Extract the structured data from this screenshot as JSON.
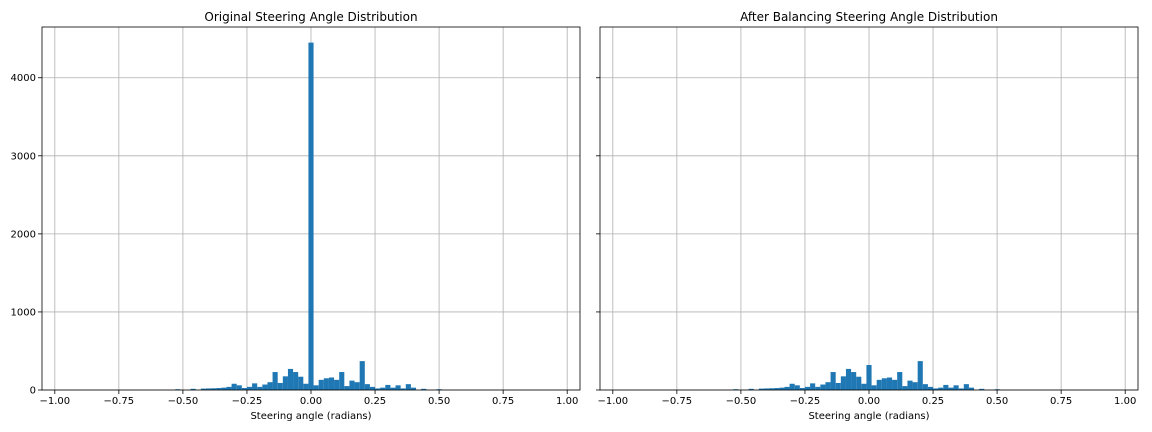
{
  "chart_data": [
    {
      "type": "bar",
      "title": "Original Steering Angle Distribution",
      "xlabel": "Steering angle (radians)",
      "ylabel": "",
      "xlim": [
        -1.05,
        1.05
      ],
      "ylim": [
        0,
        4650
      ],
      "xticks": [
        -1.0,
        -0.75,
        -0.5,
        -0.25,
        0.0,
        0.25,
        0.5,
        0.75,
        1.0
      ],
      "xtick_labels": [
        "−1.00",
        "−0.75",
        "−0.50",
        "−0.25",
        "0.00",
        "0.25",
        "0.50",
        "0.75",
        "1.00"
      ],
      "yticks": [
        0,
        1000,
        2000,
        3000,
        4000
      ],
      "ytick_labels": [
        "0",
        "1000",
        "2000",
        "3000",
        "4000"
      ],
      "grid": true,
      "bin_width": 0.02,
      "color": "#1f77b4",
      "bins": [
        [
          -0.52,
          10
        ],
        [
          -0.46,
          15
        ],
        [
          -0.42,
          18
        ],
        [
          -0.4,
          20
        ],
        [
          -0.38,
          22
        ],
        [
          -0.36,
          25
        ],
        [
          -0.34,
          30
        ],
        [
          -0.32,
          40
        ],
        [
          -0.3,
          80
        ],
        [
          -0.28,
          60
        ],
        [
          -0.26,
          25
        ],
        [
          -0.24,
          40
        ],
        [
          -0.22,
          85
        ],
        [
          -0.2,
          40
        ],
        [
          -0.18,
          70
        ],
        [
          -0.16,
          100
        ],
        [
          -0.14,
          230
        ],
        [
          -0.12,
          90
        ],
        [
          -0.1,
          175
        ],
        [
          -0.08,
          270
        ],
        [
          -0.06,
          230
        ],
        [
          -0.04,
          170
        ],
        [
          -0.02,
          80
        ],
        [
          0.0,
          4450
        ],
        [
          0.02,
          60
        ],
        [
          0.04,
          130
        ],
        [
          0.06,
          150
        ],
        [
          0.08,
          160
        ],
        [
          0.1,
          130
        ],
        [
          0.12,
          230
        ],
        [
          0.14,
          50
        ],
        [
          0.16,
          120
        ],
        [
          0.18,
          100
        ],
        [
          0.2,
          370
        ],
        [
          0.22,
          75
        ],
        [
          0.24,
          40
        ],
        [
          0.26,
          20
        ],
        [
          0.28,
          30
        ],
        [
          0.3,
          65
        ],
        [
          0.32,
          30
        ],
        [
          0.34,
          60
        ],
        [
          0.36,
          20
        ],
        [
          0.38,
          75
        ],
        [
          0.4,
          30
        ],
        [
          0.44,
          15
        ],
        [
          0.5,
          10
        ]
      ]
    },
    {
      "type": "bar",
      "title": "After Balancing Steering Angle Distribution",
      "xlabel": "Steering angle (radians)",
      "ylabel": "",
      "xlim": [
        -1.05,
        1.05
      ],
      "ylim": [
        0,
        4650
      ],
      "xticks": [
        -1.0,
        -0.75,
        -0.5,
        -0.25,
        0.0,
        0.25,
        0.5,
        0.75,
        1.0
      ],
      "xtick_labels": [
        "−1.00",
        "−0.75",
        "−0.50",
        "−0.25",
        "0.00",
        "0.25",
        "0.50",
        "0.75",
        "1.00"
      ],
      "yticks": [
        0,
        1000,
        2000,
        3000,
        4000
      ],
      "ytick_labels": [],
      "grid": true,
      "shared_y": true,
      "bin_width": 0.02,
      "color": "#1f77b4",
      "bins": [
        [
          -0.52,
          10
        ],
        [
          -0.46,
          15
        ],
        [
          -0.42,
          18
        ],
        [
          -0.4,
          20
        ],
        [
          -0.38,
          22
        ],
        [
          -0.36,
          25
        ],
        [
          -0.34,
          30
        ],
        [
          -0.32,
          40
        ],
        [
          -0.3,
          80
        ],
        [
          -0.28,
          60
        ],
        [
          -0.26,
          25
        ],
        [
          -0.24,
          40
        ],
        [
          -0.22,
          85
        ],
        [
          -0.2,
          40
        ],
        [
          -0.18,
          70
        ],
        [
          -0.16,
          100
        ],
        [
          -0.14,
          230
        ],
        [
          -0.12,
          90
        ],
        [
          -0.1,
          175
        ],
        [
          -0.08,
          270
        ],
        [
          -0.06,
          230
        ],
        [
          -0.04,
          170
        ],
        [
          -0.02,
          80
        ],
        [
          0.0,
          320
        ],
        [
          0.02,
          60
        ],
        [
          0.04,
          130
        ],
        [
          0.06,
          150
        ],
        [
          0.08,
          160
        ],
        [
          0.1,
          130
        ],
        [
          0.12,
          230
        ],
        [
          0.14,
          50
        ],
        [
          0.16,
          120
        ],
        [
          0.18,
          100
        ],
        [
          0.2,
          370
        ],
        [
          0.22,
          75
        ],
        [
          0.24,
          40
        ],
        [
          0.26,
          20
        ],
        [
          0.28,
          30
        ],
        [
          0.3,
          65
        ],
        [
          0.32,
          30
        ],
        [
          0.34,
          60
        ],
        [
          0.36,
          20
        ],
        [
          0.38,
          75
        ],
        [
          0.4,
          30
        ],
        [
          0.44,
          15
        ],
        [
          0.5,
          10
        ]
      ]
    }
  ]
}
